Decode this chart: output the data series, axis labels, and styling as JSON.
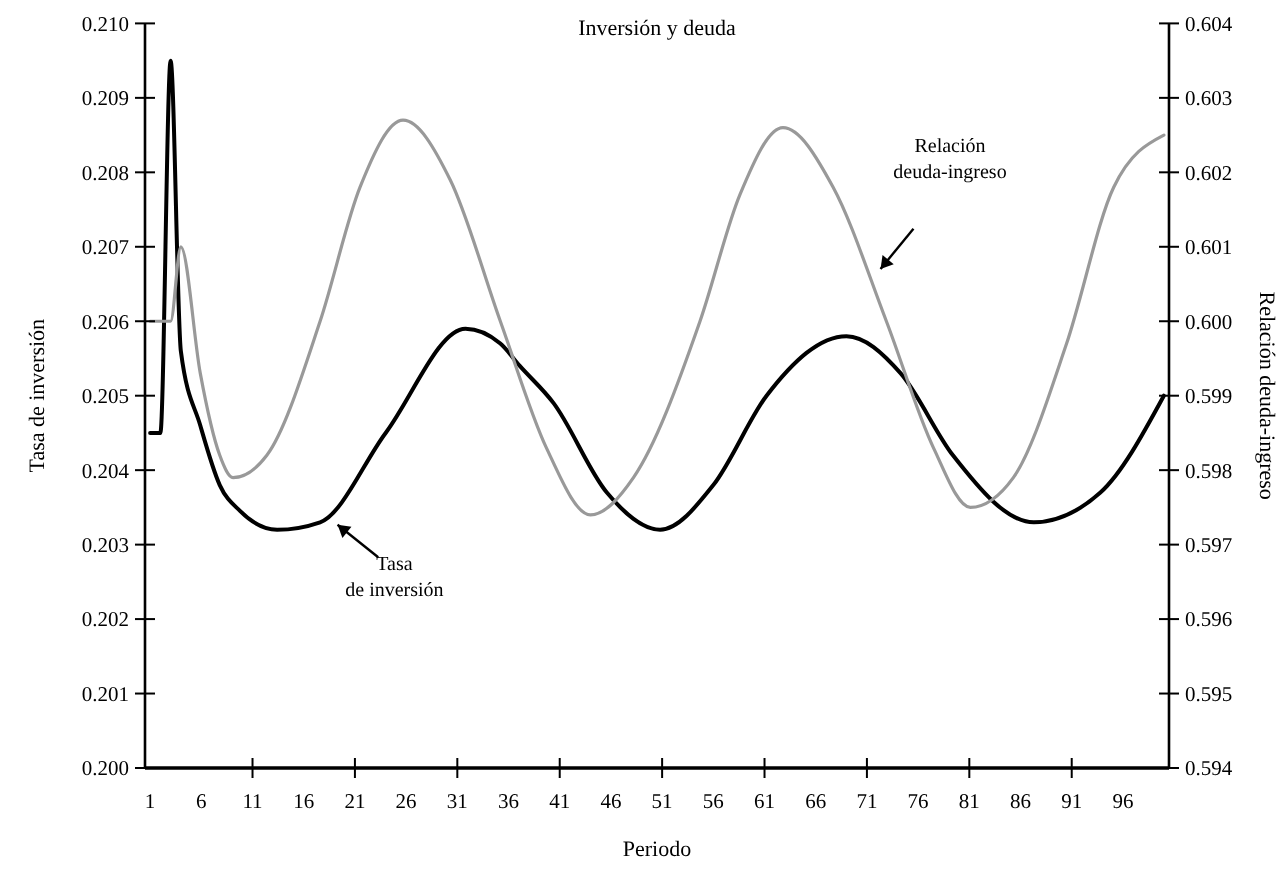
{
  "chart_data": {
    "type": "line",
    "title": "Inversión y deuda",
    "xlabel": "Periodo",
    "ylabel": "Tasa de inversión",
    "y2label": "Relación deuda-ingreso",
    "xlim": [
      0.5,
      100.5
    ],
    "xticks": [
      1,
      6,
      11,
      16,
      21,
      26,
      31,
      36,
      41,
      46,
      51,
      56,
      61,
      66,
      71,
      76,
      81,
      86,
      91,
      96
    ],
    "ylim": [
      0.2,
      0.21
    ],
    "yticks": [
      {
        "value": 0.2,
        "label": "0.200"
      },
      0.201,
      0.202,
      0.203,
      0.204,
      0.205,
      0.206,
      0.207,
      0.208,
      0.209,
      {
        "value": 0.21,
        "label": "0.210"
      }
    ],
    "y2lim": [
      0.594,
      0.604
    ],
    "y2ticks": [
      0.594,
      0.595,
      0.596,
      0.597,
      0.598,
      0.599,
      {
        "value": 0.6,
        "label": "0.600"
      },
      0.601,
      0.602,
      0.603,
      0.604
    ],
    "grid": false,
    "marker": "none",
    "line_style": "solid",
    "annotations": [
      {
        "text": "Tasa\nde inversión",
        "x": 19,
        "y": 0.2033
      },
      "Relación\ndeuda-ingreso"
    ],
    "series": [
      {
        "color": "#000000",
        "x": [
          1,
          2,
          3,
          4,
          5.9,
          7.8,
          9.8,
          13.4,
          17.6,
          24,
          31.8,
          35.2,
          37.1,
          40.4,
          45.6,
          50.8,
          56,
          61.2,
          69,
          74.3,
          79.4,
          87.3,
          93.8,
          100
        ],
        "values": [
          0.2045,
          0.2045,
          0.2095,
          0.2056,
          0.2046,
          0.2038,
          0.20345,
          0.2032,
          0.2033,
          0.2045,
          0.2059,
          0.2057,
          0.2054,
          0.2049,
          0.2037,
          0.2032,
          0.2038,
          0.205,
          0.2058,
          0.2053,
          0.2042,
          0.2033,
          0.2037,
          0.205
        ]
      },
      {
        "color": "#999999",
        "axis": "y2",
        "x": [
          1,
          2,
          3,
          4,
          5.9,
          7.8,
          9.1,
          12.4,
          17.6,
          21.5,
          25.7,
          30.3,
          35.2,
          39.7,
          44,
          48.2,
          54.7,
          58.6,
          62.8,
          67.7,
          72.9,
          77.5,
          81.1,
          85.3,
          90.5,
          95.1,
          100
        ],
        "values": [
          0.6,
          0.6,
          0.6,
          0.601,
          0.5993,
          0.5982,
          0.5979,
          0.5982,
          0.6,
          0.6018,
          0.6027,
          0.6019,
          0.6,
          0.5983,
          0.5974,
          0.5979,
          0.6,
          0.6017,
          0.6026,
          0.6018,
          0.6,
          0.5983,
          0.5975,
          0.5979,
          0.5997,
          0.6018,
          0.6025
        ]
      }
    ]
  }
}
